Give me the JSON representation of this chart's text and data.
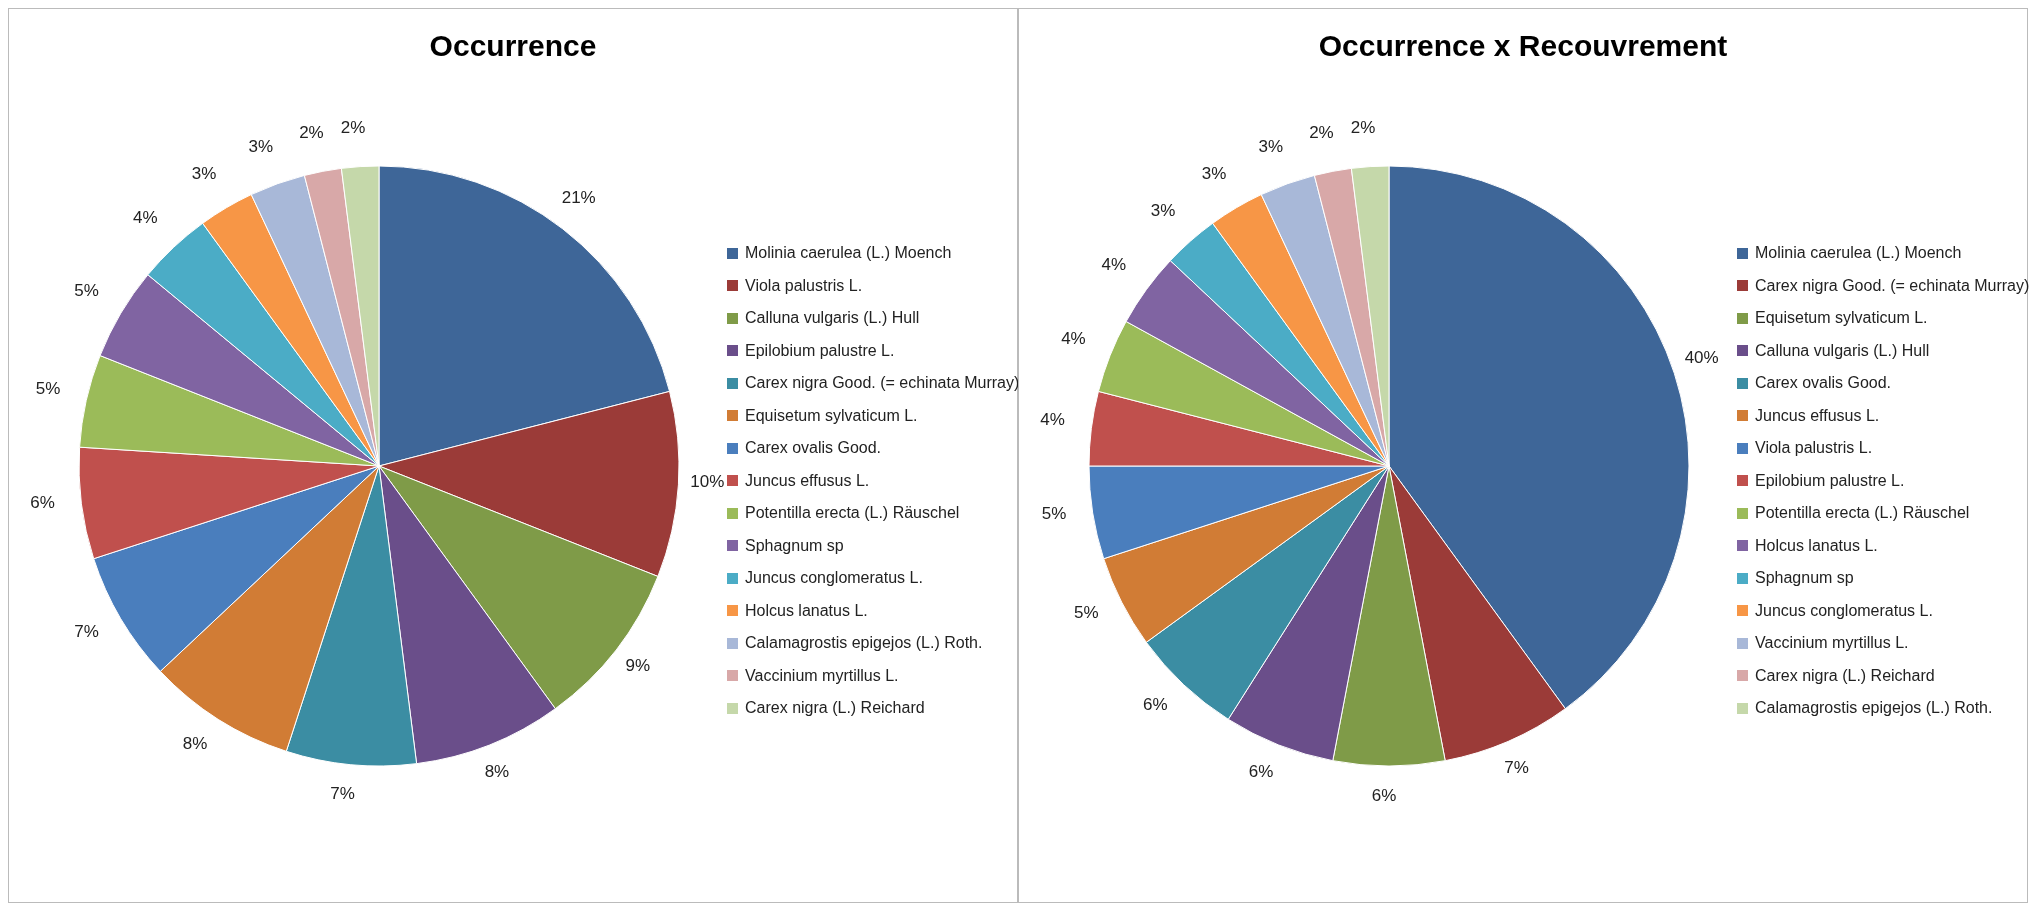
{
  "chart_data": [
    {
      "type": "pie",
      "title": "Occurrence",
      "legend": "right",
      "value_labels": [
        "21%",
        "10%",
        "9%",
        "8%",
        "7%",
        "8%",
        "7%",
        "6%",
        "5%",
        "5%",
        "4%",
        "3%",
        "3%",
        "2%",
        "2%"
      ],
      "categories": [
        "Molinia caerulea (L.) Moench",
        "Viola palustris L.",
        "Calluna vulgaris (L.) Hull",
        "Epilobium palustre L.",
        "Carex nigra Good. (= echinata Murray)",
        "Equisetum sylvaticum L.",
        "Carex ovalis Good.",
        "Juncus effusus L.",
        "Potentilla erecta (L.) Räuschel",
        "Sphagnum sp",
        "Juncus conglomeratus L.",
        "Holcus lanatus L.",
        "Calamagrostis epigejos (L.) Roth.",
        "Vaccinium myrtillus L.",
        "Carex nigra (L.) Reichard"
      ],
      "values": [
        21,
        10,
        9,
        8,
        7,
        8,
        7,
        6,
        5,
        5,
        4,
        3,
        3,
        2,
        2
      ],
      "colors": [
        "#3e6698",
        "#9b3b38",
        "#7f9b48",
        "#6a4e8a",
        "#3b8da3",
        "#d17c35",
        "#4a7ebd",
        "#c0504d",
        "#9bbb59",
        "#8064a2",
        "#4bacc6",
        "#f79646",
        "#a8b8d8",
        "#d8a8a8",
        "#c5d8aa"
      ]
    },
    {
      "type": "pie",
      "title": "Occurrence x Recouvrement",
      "legend": "right",
      "value_labels": [
        "40%",
        "7%",
        "6%",
        "6%",
        "6%",
        "5%",
        "5%",
        "4%",
        "4%",
        "4%",
        "3%",
        "3%",
        "3%",
        "2%",
        "2%"
      ],
      "categories": [
        "Molinia caerulea (L.) Moench",
        "Carex nigra Good. (= echinata Murray)",
        "Equisetum sylvaticum L.",
        "Calluna vulgaris (L.) Hull",
        "Carex ovalis Good.",
        "Juncus effusus L.",
        "Viola palustris L.",
        "Epilobium palustre L.",
        "Potentilla erecta (L.) Räuschel",
        "Holcus lanatus L.",
        "Sphagnum sp",
        "Juncus conglomeratus L.",
        "Vaccinium myrtillus L.",
        "Carex nigra (L.) Reichard",
        "Calamagrostis epigejos (L.) Roth."
      ],
      "values": [
        40,
        7,
        6,
        6,
        6,
        5,
        5,
        4,
        4,
        4,
        3,
        3,
        3,
        2,
        2
      ],
      "colors": [
        "#3e6698",
        "#9b3b38",
        "#7f9b48",
        "#6a4e8a",
        "#3b8da3",
        "#d17c35",
        "#4a7ebd",
        "#c0504d",
        "#9bbb59",
        "#8064a2",
        "#4bacc6",
        "#f79646",
        "#a8b8d8",
        "#d8a8a8",
        "#c5d8aa"
      ]
    }
  ]
}
